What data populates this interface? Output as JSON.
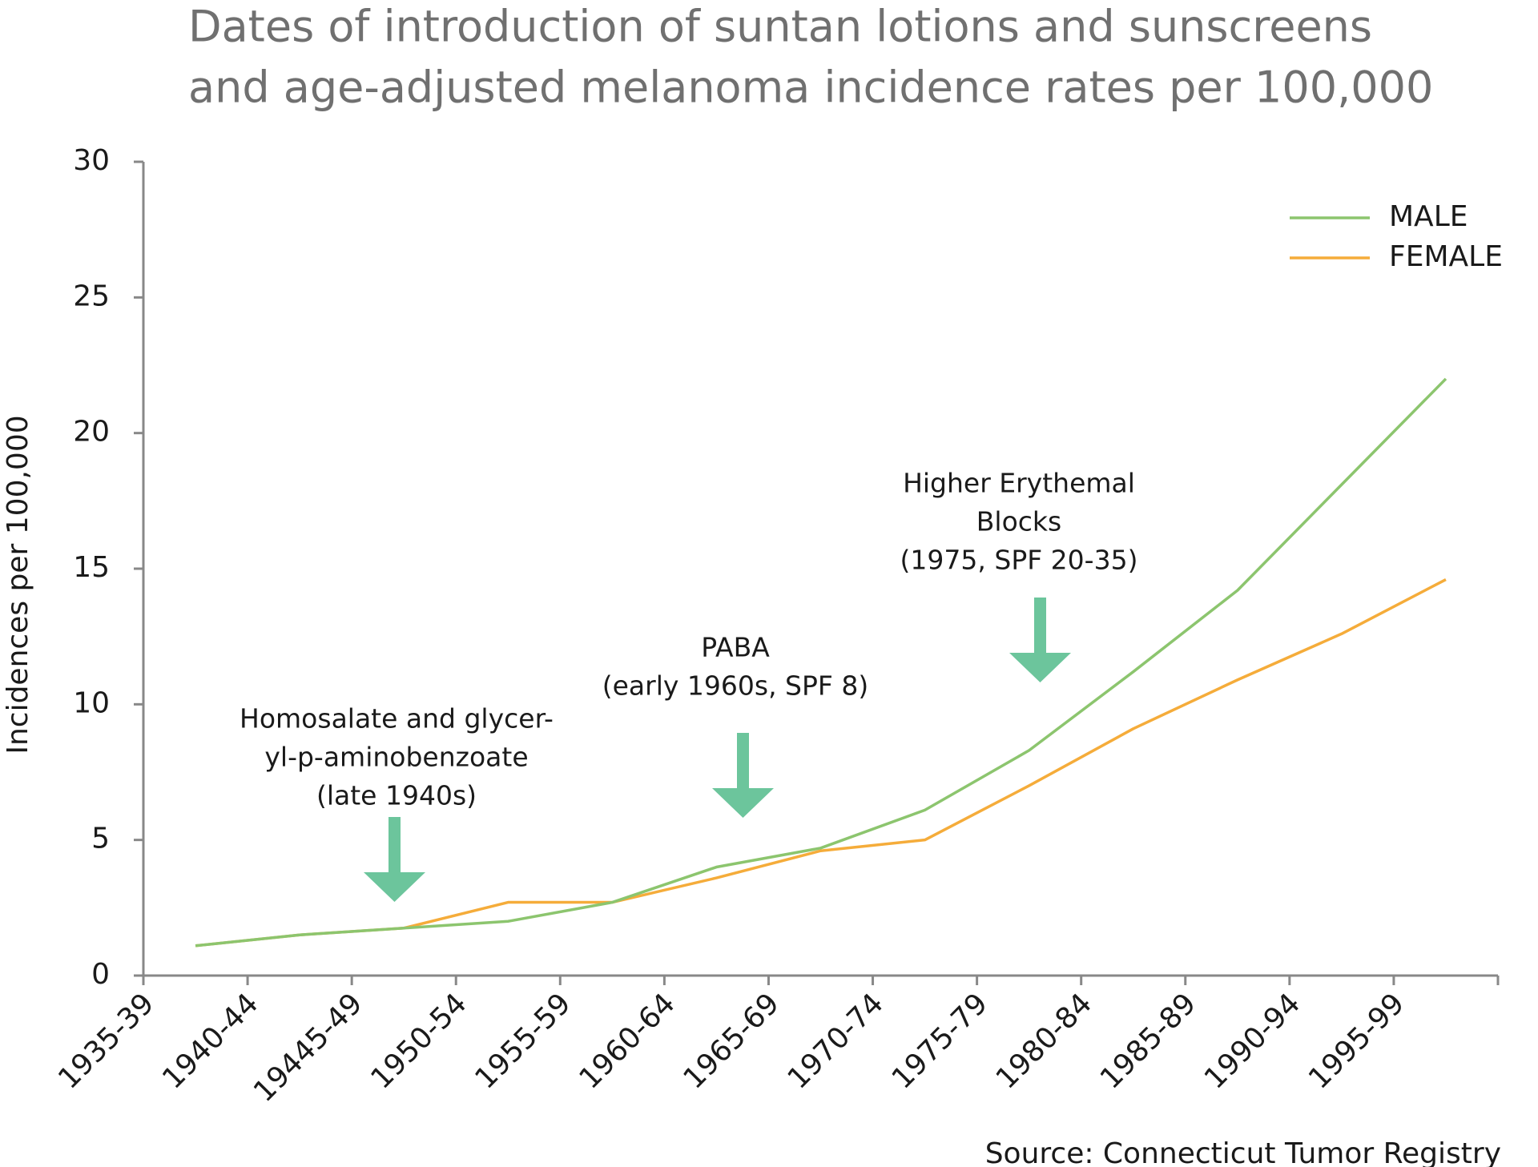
{
  "chart_data": {
    "type": "line",
    "title": [
      "Dates of introduction of suntan lotions and sunscreens",
      "and age-adjusted melanoma incidence rates per 100,000"
    ],
    "y_label": "Incidences per 100,000",
    "source": "Source: Connecticut Tumor Registry",
    "categories": [
      "1935-39",
      "1940-44",
      "19445-49",
      "1950-54",
      "1955-59",
      "1960-64",
      "1965-69",
      "1970-74",
      "1975-79",
      "1980-84",
      "1985-89",
      "1990-94",
      "1995-99"
    ],
    "series": [
      {
        "name": "MALE",
        "color": "#8cc56e",
        "values": [
          1.1,
          1.5,
          1.75,
          2.0,
          2.7,
          4.0,
          4.7,
          6.1,
          8.3,
          11.2,
          14.2,
          18.1,
          22.0
        ]
      },
      {
        "name": "FEMALE",
        "color": "#f5ac3a",
        "values": [
          1.1,
          1.5,
          1.75,
          2.7,
          2.7,
          3.6,
          4.6,
          5.0,
          7.0,
          9.1,
          10.9,
          12.6,
          14.6
        ]
      }
    ],
    "ylim": [
      0,
      30
    ],
    "yticks": [
      0,
      5,
      10,
      15,
      20,
      25,
      30
    ],
    "legend": "top-right",
    "annotations": [
      {
        "lines": [
          "Homosalate and glycer-",
          "yl-p-aminobenzoate",
          "(late 1940s)"
        ]
      },
      {
        "lines": [
          "PABA",
          "(early 1960s, SPF 8)"
        ]
      },
      {
        "lines": [
          "Higher Erythemal",
          "Blocks",
          "(1975, SPF 20-35)"
        ]
      }
    ]
  }
}
